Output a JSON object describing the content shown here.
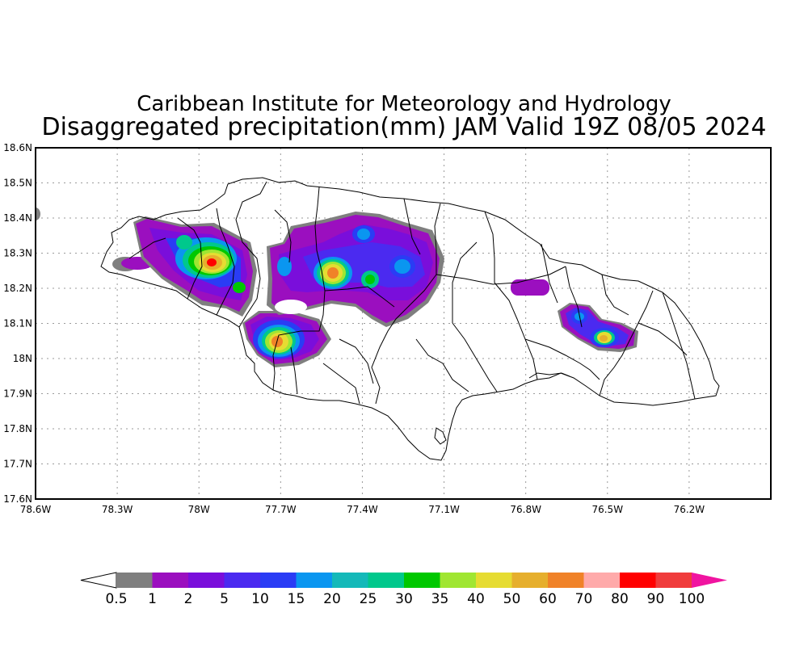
{
  "title": {
    "line1": "Caribbean Institute for Meteorology and Hydrology",
    "line2": "Disaggregated precipitation(mm) JAM Valid 19Z 08/05 2024"
  },
  "map": {
    "region": "Jamaica",
    "lon_range": [
      -78.6,
      -75.9
    ],
    "lat_range": [
      17.6,
      18.6
    ],
    "lat_ticks": [
      "18.6N",
      "18.5N",
      "18.4N",
      "18.3N",
      "18.2N",
      "18.1N",
      "18N",
      "17.9N",
      "17.8N",
      "17.7N",
      "17.6N"
    ],
    "lon_ticks": [
      "78.6W",
      "78.3W",
      "78W",
      "77.7W",
      "77.4W",
      "77.1W",
      "76.8W",
      "76.5W",
      "76.2W"
    ],
    "grid": "dotted"
  },
  "colorbar": {
    "labels": [
      "0.5",
      "1",
      "2",
      "5",
      "10",
      "15",
      "20",
      "25",
      "30",
      "35",
      "40",
      "50",
      "60",
      "70",
      "80",
      "90",
      "100"
    ],
    "colors": [
      "#7f7f7f",
      "#9b0fbf",
      "#7a0edb",
      "#4b2af0",
      "#2a3cf5",
      "#0a96f0",
      "#14b9b9",
      "#00c88c",
      "#00c800",
      "#a0e632",
      "#e6dc32",
      "#e6af2d",
      "#f08228",
      "#ffaaaa",
      "#ff0000",
      "#f03c3c"
    ],
    "low_arrow_color": "#ffffff",
    "high_arrow_color": "#f014a0"
  }
}
